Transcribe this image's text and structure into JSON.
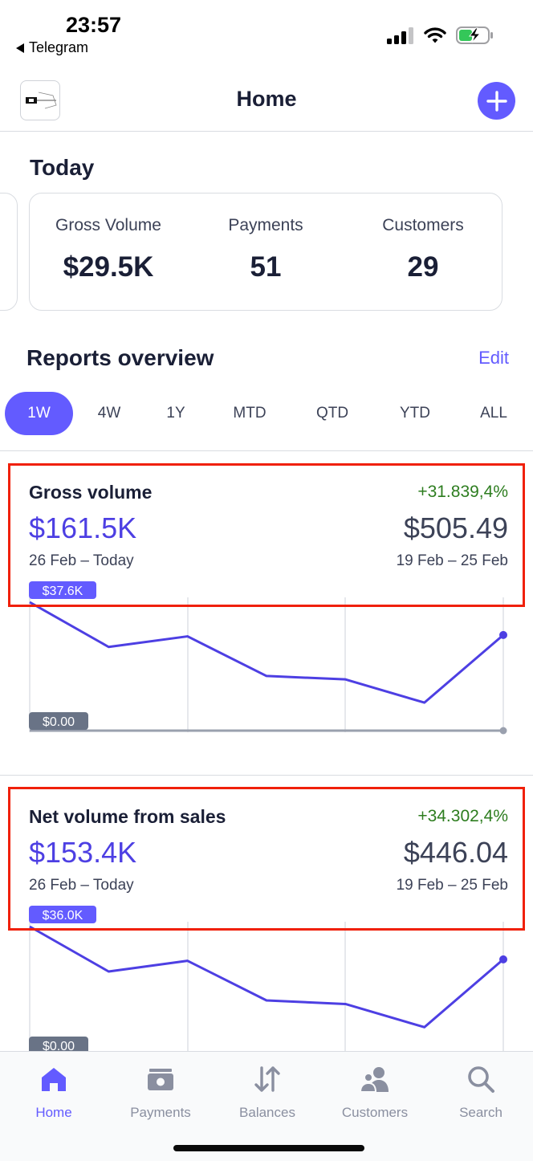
{
  "status_bar": {
    "time": "23:57",
    "back_app": "Telegram",
    "icons": [
      "cellular-signal-icon",
      "wifi-icon",
      "battery-charging-icon"
    ]
  },
  "header": {
    "title": "Home",
    "logo_icon": "business-logo-icon",
    "add_icon": "plus-icon"
  },
  "today": {
    "title": "Today",
    "metrics": [
      {
        "label": "Gross Volume",
        "value": "$29.5K"
      },
      {
        "label": "Payments",
        "value": "51"
      },
      {
        "label": "Customers",
        "value": "29"
      }
    ]
  },
  "reports": {
    "title": "Reports overview",
    "edit_label": "Edit",
    "ranges": [
      "1W",
      "4W",
      "1Y",
      "MTD",
      "QTD",
      "YTD",
      "ALL"
    ],
    "active_range": "1W",
    "items": [
      {
        "title": "Gross volume",
        "change": "+31.839,4%",
        "current_value": "$161.5K",
        "previous_value": "$505.49",
        "current_period": "26 Feb – Today",
        "previous_period": "19 Feb – 25 Feb",
        "max_label": "$37.6K",
        "min_label": "$0.00",
        "chart_data": {
          "type": "line",
          "ylim": [
            0,
            37.6
          ],
          "series": [
            {
              "values": [
                37.6,
                24.5,
                27.6,
                16.0,
                15.0,
                8.2,
                28.0
              ]
            },
            {
              "values": [
                0.0,
                0.0,
                0.0,
                0.0,
                0.0,
                0.0,
                0.0
              ]
            }
          ]
        }
      },
      {
        "title": "Net volume from sales",
        "change": "+34.302,4%",
        "current_value": "$153.4K",
        "previous_value": "$446.04",
        "current_period": "26 Feb – Today",
        "previous_period": "19 Feb – 25 Feb",
        "max_label": "$36.0K",
        "min_label": "$0.00",
        "chart_data": {
          "type": "line",
          "ylim": [
            0,
            36.0
          ],
          "series": [
            {
              "values": [
                36.0,
                23.4,
                26.4,
                15.3,
                14.3,
                7.8,
                26.8
              ]
            }
          ]
        }
      }
    ]
  },
  "tab_bar": {
    "tabs": [
      {
        "label": "Home",
        "icon": "home-icon",
        "active": true
      },
      {
        "label": "Payments",
        "icon": "payments-icon",
        "active": false
      },
      {
        "label": "Balances",
        "icon": "balances-icon",
        "active": false
      },
      {
        "label": "Customers",
        "icon": "customers-icon",
        "active": false
      },
      {
        "label": "Search",
        "icon": "search-icon",
        "active": false
      }
    ]
  },
  "colors": {
    "accent": "#635bff",
    "line": "#4d3fe3",
    "positive": "#2d7d1f",
    "highlight": "#f0200a",
    "text": "#1a1f36"
  }
}
